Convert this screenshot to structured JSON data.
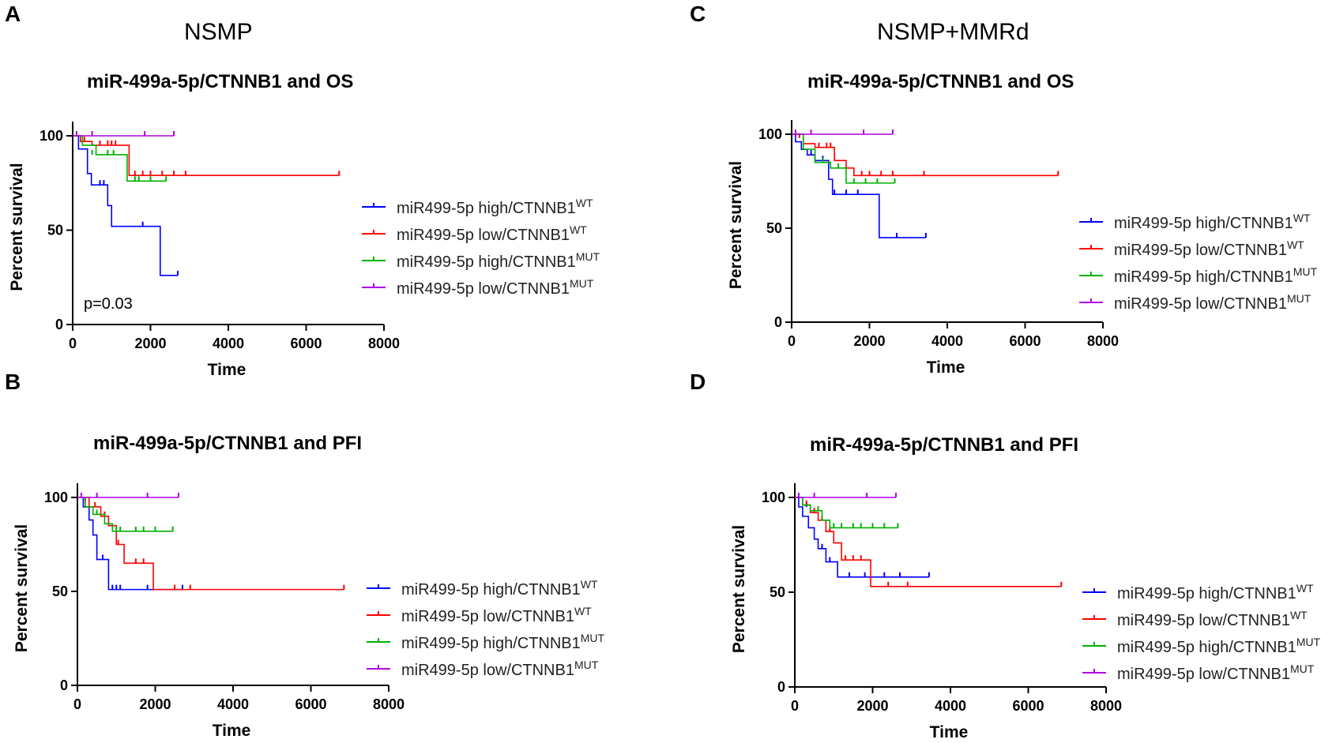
{
  "figure": {
    "groups": [
      {
        "id": "nsmp",
        "title": "NSMP"
      },
      {
        "id": "nsmp_mmrd",
        "title": "NSMP+MMRd"
      }
    ]
  },
  "legend": [
    {
      "name": "miR499-5p high/CTNNB1",
      "superscript": "WT",
      "color": "#0000ff"
    },
    {
      "name": "miR499-5p low/CTNNB1",
      "superscript": "WT",
      "color": "#ff0000"
    },
    {
      "name": "miR499-5p high/CTNNB1",
      "superscript": "MUT",
      "color": "#00b000"
    },
    {
      "name": "miR499-5p low/CTNNB1",
      "superscript": "MUT",
      "color": "#b000e0"
    }
  ],
  "chart_data": [
    {
      "panel": "A",
      "type": "line",
      "step": true,
      "title": "miR-499a-5p/CTNNB1 and OS",
      "xlabel": "Time",
      "ylabel": "Percent survival",
      "xlim": [
        0,
        8000
      ],
      "ylim": [
        0,
        100
      ],
      "xticks": [
        0,
        2000,
        4000,
        6000,
        8000
      ],
      "yticks": [
        0,
        50,
        100
      ],
      "annotation": "p=0.03",
      "series": [
        {
          "name": "miR499-5p high/CTNNB1 WT",
          "color": "#0000ff",
          "x": [
            0,
            150,
            380,
            480,
            600,
            900,
            1000,
            2250,
            2700
          ],
          "y": [
            100,
            93,
            80,
            74,
            74,
            63,
            52,
            26,
            26
          ],
          "censor_x": [
            700,
            800,
            1800,
            2700
          ],
          "censor_y": [
            74,
            74,
            52,
            26
          ]
        },
        {
          "name": "miR499-5p low/CTNNB1 WT",
          "color": "#ff0000",
          "x": [
            0,
            200,
            500,
            1450,
            6850
          ],
          "y": [
            100,
            97,
            95,
            79,
            79
          ],
          "censor_x": [
            300,
            700,
            900,
            1000,
            1100,
            1600,
            1800,
            2000,
            2300,
            2600,
            2900,
            6850
          ],
          "censor_y": [
            97,
            95,
            95,
            95,
            95,
            79,
            79,
            79,
            79,
            79,
            79,
            79
          ]
        },
        {
          "name": "miR499-5p high/CTNNB1 MUT",
          "color": "#00b000",
          "x": [
            0,
            250,
            600,
            1400,
            2400
          ],
          "y": [
            100,
            95,
            90,
            76,
            76
          ],
          "censor_x": [
            500,
            900,
            1050,
            1600,
            1700,
            2000,
            2400
          ],
          "censor_y": [
            90,
            90,
            90,
            76,
            76,
            76,
            76
          ]
        },
        {
          "name": "miR499-5p low/CTNNB1 MUT",
          "color": "#b000e0",
          "x": [
            0,
            2600
          ],
          "y": [
            100,
            100
          ],
          "censor_x": [
            100,
            500,
            1850,
            2600
          ],
          "censor_y": [
            100,
            100,
            100,
            100
          ]
        }
      ]
    },
    {
      "panel": "B",
      "type": "line",
      "step": true,
      "title": "miR-499a-5p/CTNNB1 and PFI",
      "xlabel": "Time",
      "ylabel": "Percent survival",
      "xlim": [
        0,
        8000
      ],
      "ylim": [
        0,
        100
      ],
      "xticks": [
        0,
        2000,
        4000,
        6000,
        8000
      ],
      "yticks": [
        0,
        50,
        100
      ],
      "series": [
        {
          "name": "miR499-5p high/CTNNB1 WT",
          "color": "#0000ff",
          "x": [
            0,
            150,
            300,
            400,
            500,
            800,
            2700
          ],
          "y": [
            100,
            95,
            88,
            80,
            67,
            51,
            51
          ],
          "censor_x": [
            650,
            900,
            1000,
            1100,
            1800,
            2700
          ],
          "censor_y": [
            67,
            51,
            51,
            51,
            51,
            51
          ]
        },
        {
          "name": "miR499-5p low/CTNNB1 WT",
          "color": "#ff0000",
          "x": [
            0,
            300,
            600,
            800,
            1000,
            1200,
            1950,
            6850
          ],
          "y": [
            100,
            95,
            90,
            85,
            75,
            65,
            51,
            51
          ],
          "censor_x": [
            200,
            450,
            700,
            1050,
            1500,
            1700,
            2500,
            2900,
            6850
          ],
          "censor_y": [
            97,
            95,
            90,
            75,
            65,
            65,
            51,
            51,
            51
          ]
        },
        {
          "name": "miR499-5p high/CTNNB1 MUT",
          "color": "#00b000",
          "x": [
            0,
            200,
            400,
            700,
            900,
            2450
          ],
          "y": [
            100,
            95,
            91,
            86,
            82,
            82
          ],
          "censor_x": [
            500,
            1000,
            1100,
            1500,
            1700,
            2000,
            2450
          ],
          "censor_y": [
            91,
            82,
            82,
            82,
            82,
            82,
            82
          ]
        },
        {
          "name": "miR499-5p low/CTNNB1 MUT",
          "color": "#b000e0",
          "x": [
            0,
            2600
          ],
          "y": [
            100,
            100
          ],
          "censor_x": [
            100,
            500,
            1800,
            2600
          ],
          "censor_y": [
            100,
            100,
            100,
            100
          ]
        }
      ]
    },
    {
      "panel": "C",
      "type": "line",
      "step": true,
      "title": "miR-499a-5p/CTNNB1 and OS",
      "xlabel": "Time",
      "ylabel": "Percent survival",
      "xlim": [
        0,
        8000
      ],
      "ylim": [
        0,
        100
      ],
      "xticks": [
        0,
        2000,
        4000,
        6000,
        8000
      ],
      "yticks": [
        0,
        50,
        100
      ],
      "series": [
        {
          "name": "miR499-5p high/CTNNB1 WT",
          "color": "#0000ff",
          "x": [
            0,
            100,
            250,
            400,
            600,
            950,
            1050,
            2250,
            3450
          ],
          "y": [
            100,
            96,
            92,
            89,
            86,
            76,
            68,
            45,
            45
          ],
          "censor_x": [
            500,
            800,
            1100,
            1400,
            1700,
            2700,
            3450
          ],
          "censor_y": [
            89,
            86,
            68,
            68,
            68,
            45,
            45
          ]
        },
        {
          "name": "miR499-5p low/CTNNB1 WT",
          "color": "#ff0000",
          "x": [
            0,
            300,
            600,
            1100,
            1400,
            1600,
            6850
          ],
          "y": [
            100,
            95,
            93,
            86,
            82,
            78,
            78
          ],
          "censor_x": [
            200,
            700,
            900,
            1000,
            1800,
            2000,
            2300,
            2600,
            3400,
            6850
          ],
          "censor_y": [
            98,
            93,
            93,
            93,
            78,
            78,
            78,
            78,
            78,
            78
          ]
        },
        {
          "name": "miR499-5p high/CTNNB1 MUT",
          "color": "#00b000",
          "x": [
            0,
            300,
            600,
            1000,
            1400,
            2650
          ],
          "y": [
            100,
            92,
            85,
            82,
            74,
            74
          ],
          "censor_x": [
            800,
            1200,
            1600,
            1900,
            2200,
            2650
          ],
          "censor_y": [
            85,
            82,
            74,
            74,
            74,
            74
          ]
        },
        {
          "name": "miR499-5p low/CTNNB1 MUT",
          "color": "#b000e0",
          "x": [
            0,
            2600
          ],
          "y": [
            100,
            100
          ],
          "censor_x": [
            100,
            500,
            1850,
            2600
          ],
          "censor_y": [
            100,
            100,
            100,
            100
          ]
        }
      ]
    },
    {
      "panel": "D",
      "type": "line",
      "step": true,
      "title": "miR-499a-5p/CTNNB1 and PFI",
      "xlabel": "Time",
      "ylabel": "Percent survival",
      "xlim": [
        0,
        8000
      ],
      "ylim": [
        0,
        100
      ],
      "xticks": [
        0,
        2000,
        4000,
        6000,
        8000
      ],
      "yticks": [
        0,
        50,
        100
      ],
      "series": [
        {
          "name": "miR499-5p high/CTNNB1 WT",
          "color": "#0000ff",
          "x": [
            0,
            100,
            200,
            350,
            500,
            600,
            800,
            1100,
            3450
          ],
          "y": [
            100,
            95,
            90,
            84,
            78,
            73,
            66,
            58,
            58
          ],
          "censor_x": [
            300,
            700,
            900,
            1400,
            1800,
            2300,
            2700,
            3450
          ],
          "censor_y": [
            95,
            73,
            66,
            58,
            58,
            58,
            58,
            58
          ]
        },
        {
          "name": "miR499-5p low/CTNNB1 WT",
          "color": "#ff0000",
          "x": [
            0,
            200,
            400,
            600,
            800,
            1000,
            1200,
            1950,
            6850
          ],
          "y": [
            100,
            96,
            92,
            88,
            82,
            76,
            67,
            53,
            53
          ],
          "censor_x": [
            300,
            500,
            700,
            900,
            1300,
            1500,
            1700,
            2400,
            2900,
            6850
          ],
          "censor_y": [
            96,
            92,
            88,
            82,
            67,
            67,
            67,
            53,
            53,
            53
          ]
        },
        {
          "name": "miR499-5p high/CTNNB1 MUT",
          "color": "#00b000",
          "x": [
            0,
            200,
            400,
            700,
            900,
            2650
          ],
          "y": [
            100,
            96,
            93,
            88,
            84,
            84
          ],
          "censor_x": [
            600,
            1000,
            1200,
            1500,
            1700,
            2000,
            2300,
            2650
          ],
          "censor_y": [
            93,
            84,
            84,
            84,
            84,
            84,
            84,
            84
          ]
        },
        {
          "name": "miR499-5p low/CTNNB1 MUT",
          "color": "#b000e0",
          "x": [
            0,
            2600
          ],
          "y": [
            100,
            100
          ],
          "censor_x": [
            100,
            500,
            1850,
            2600
          ],
          "censor_y": [
            100,
            100,
            100,
            100
          ]
        }
      ]
    }
  ]
}
